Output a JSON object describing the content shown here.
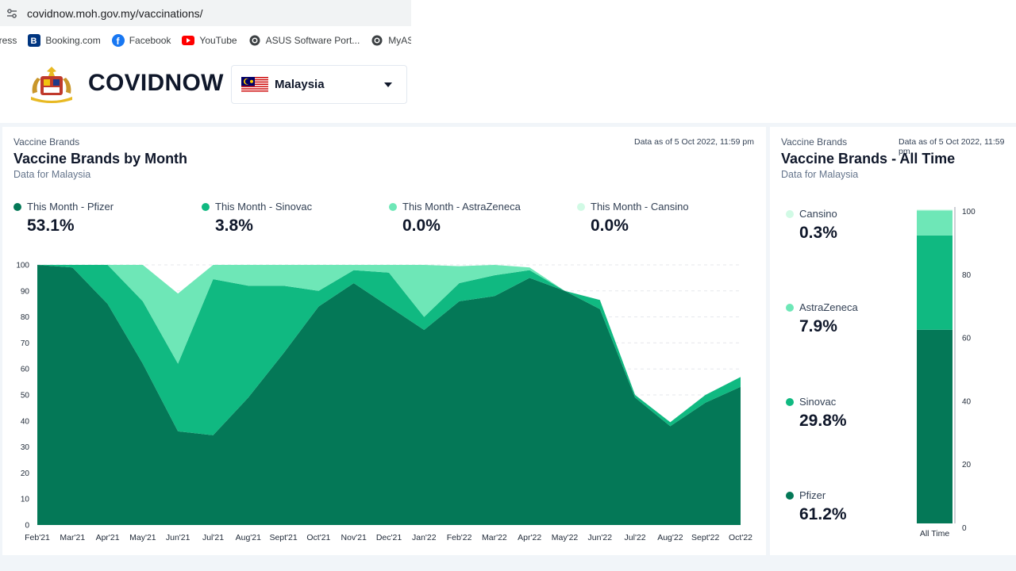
{
  "browser": {
    "url": "covidnow.moh.gov.my/vaccinations/",
    "bookmarks": [
      {
        "label": "press",
        "icon": "press-icon"
      },
      {
        "label": "Booking.com",
        "icon": "booking-icon"
      },
      {
        "label": "Facebook",
        "icon": "facebook-icon"
      },
      {
        "label": "YouTube",
        "icon": "youtube-icon"
      },
      {
        "label": "ASUS Software Port...",
        "icon": "globe-icon"
      },
      {
        "label": "MyASUS",
        "icon": "globe-icon"
      }
    ]
  },
  "header": {
    "brand": "COVIDNOW",
    "country": "Malaysia"
  },
  "left_card": {
    "eyebrow": "Vaccine Brands",
    "title": "Vaccine Brands by Month",
    "subtitle": "Data for Malaysia",
    "as_of": "Data as of 5 Oct 2022, 11:59 pm",
    "stats": [
      {
        "label": "This Month - Pfizer",
        "value": "53.1%",
        "color": "#047857"
      },
      {
        "label": "This Month - Sinovac",
        "value": "3.8%",
        "color": "#10b981"
      },
      {
        "label": "This Month - AstraZeneca",
        "value": "0.0%",
        "color": "#6ee7b7"
      },
      {
        "label": "This Month - Cansino",
        "value": "0.0%",
        "color": "#d1fae5"
      }
    ]
  },
  "right_card": {
    "eyebrow": "Vaccine Brands",
    "title": "Vaccine Brands - All Time",
    "subtitle": "Data for Malaysia",
    "as_of": "Data as of 5 Oct 2022, 11:59 pm",
    "stats": [
      {
        "label": "Cansino",
        "value": "0.3%",
        "color": "#d1fae5"
      },
      {
        "label": "AstraZeneca",
        "value": "7.9%",
        "color": "#6ee7b7"
      },
      {
        "label": "Sinovac",
        "value": "29.8%",
        "color": "#10b981"
      },
      {
        "label": "Pfizer",
        "value": "61.2%",
        "color": "#047857"
      }
    ]
  },
  "chart_data": [
    {
      "type": "area",
      "stacked": true,
      "categories": [
        "Feb'21",
        "Mar'21",
        "Apr'21",
        "May'21",
        "Jun'21",
        "Jul'21",
        "Aug'21",
        "Sept'21",
        "Oct'21",
        "Nov'21",
        "Dec'21",
        "Jan'22",
        "Feb'22",
        "Mar'22",
        "Apr'22",
        "May'22",
        "Jun'22",
        "Jul'22",
        "Aug'22",
        "Sept'22",
        "Oct'22"
      ],
      "ylim": [
        0,
        100
      ],
      "yticks": [
        0,
        10,
        20,
        30,
        40,
        50,
        60,
        70,
        80,
        90,
        100
      ],
      "series": [
        {
          "name": "Pfizer",
          "color": "#047857",
          "values": [
            100,
            99,
            85,
            62,
            36,
            34.5,
            49,
            66,
            84,
            93,
            84,
            75,
            86,
            88,
            95,
            90,
            83,
            49,
            38,
            47,
            53.1
          ]
        },
        {
          "name": "Sinovac",
          "color": "#10b981",
          "values": [
            0,
            1,
            15,
            24,
            26,
            60,
            43,
            26,
            6,
            5,
            13,
            5,
            7,
            8,
            3,
            0,
            3.5,
            1,
            1.5,
            3,
            3.8
          ]
        },
        {
          "name": "AstraZeneca",
          "color": "#6ee7b7",
          "values": [
            0,
            0,
            0,
            14,
            27,
            5.5,
            8,
            8,
            10,
            2,
            3,
            20,
            6.5,
            4,
            1,
            0,
            0,
            0,
            0,
            0,
            0
          ]
        },
        {
          "name": "Cansino",
          "color": "#d1fae5",
          "values": [
            0,
            0,
            0,
            0,
            0,
            0,
            0,
            0,
            0,
            0,
            0,
            0,
            0,
            0,
            0,
            0,
            0,
            0,
            0,
            0,
            0
          ]
        }
      ]
    },
    {
      "type": "bar",
      "stacked": true,
      "categories": [
        "All Time"
      ],
      "ylim": [
        0,
        100
      ],
      "yticks": [
        0,
        20,
        40,
        60,
        80,
        100
      ],
      "series": [
        {
          "name": "Pfizer",
          "color": "#047857",
          "values": [
            61.2
          ]
        },
        {
          "name": "Sinovac",
          "color": "#10b981",
          "values": [
            29.8
          ]
        },
        {
          "name": "AstraZeneca",
          "color": "#6ee7b7",
          "values": [
            7.9
          ]
        },
        {
          "name": "Cansino",
          "color": "#d1fae5",
          "values": [
            0.3
          ]
        }
      ]
    }
  ]
}
